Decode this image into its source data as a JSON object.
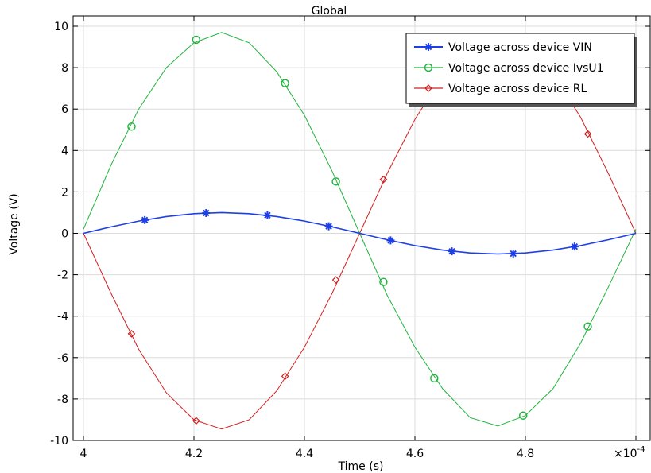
{
  "chart_data": {
    "type": "line",
    "title": "Global",
    "xlabel": "Time (s)",
    "ylabel": "Voltage (V)",
    "x_multiplier": "×10",
    "x_multiplier_exp": "-4",
    "xlim": [
      4.0,
      5.0
    ],
    "ylim": [
      -10,
      10
    ],
    "xticks": [
      4.0,
      4.2,
      4.4,
      4.6,
      4.8,
      5.0
    ],
    "xtick_labels": [
      "4",
      "4.2",
      "4.4",
      "4.6",
      "4.8",
      ""
    ],
    "yticks": [
      -10,
      -8,
      -6,
      -4,
      -2,
      0,
      2,
      4,
      6,
      8,
      10
    ],
    "ytick_labels": [
      "-10",
      "-8",
      "-6",
      "-4",
      "-2",
      "0",
      "2",
      "4",
      "6",
      "8",
      "10"
    ],
    "grid": true,
    "legend_position": "top-right",
    "series": [
      {
        "name": "Voltage across device VIN",
        "color": "#1f3fe6",
        "marker": "asterisk",
        "x": [
          4.0,
          4.05,
          4.1,
          4.15,
          4.2,
          4.25,
          4.3,
          4.35,
          4.4,
          4.45,
          4.5,
          4.55,
          4.6,
          4.65,
          4.7,
          4.75,
          4.8,
          4.85,
          4.9,
          4.95,
          5.0
        ],
        "values": [
          0.0,
          0.31,
          0.59,
          0.81,
          0.95,
          1.0,
          0.95,
          0.81,
          0.59,
          0.31,
          0.0,
          -0.31,
          -0.59,
          -0.81,
          -0.95,
          -1.0,
          -0.95,
          -0.81,
          -0.59,
          -0.31,
          0.0
        ],
        "markers_x": [
          4.111,
          4.222,
          4.333,
          4.444,
          4.556,
          4.667,
          4.778,
          4.889
        ],
        "markers_y": [
          0.64,
          0.98,
          0.87,
          0.34,
          -0.34,
          -0.87,
          -0.98,
          -0.64
        ]
      },
      {
        "name": "Voltage across device IvsU1",
        "color": "#1fb43c",
        "marker": "circle",
        "x": [
          4.0,
          4.05,
          4.1,
          4.15,
          4.2,
          4.25,
          4.3,
          4.35,
          4.4,
          4.45,
          4.5,
          4.55,
          4.6,
          4.65,
          4.7,
          4.75,
          4.8,
          4.85,
          4.9,
          4.95,
          5.0
        ],
        "values": [
          0.2,
          3.3,
          6.0,
          8.0,
          9.2,
          9.7,
          9.2,
          7.8,
          5.7,
          3.0,
          0.0,
          -3.0,
          -5.5,
          -7.5,
          -8.9,
          -9.3,
          -8.8,
          -7.5,
          -5.3,
          -2.6,
          0.2
        ],
        "markers_x": [
          4.087,
          4.204,
          4.365,
          4.457,
          4.543,
          4.635,
          4.796,
          4.913
        ],
        "markers_y": [
          5.15,
          9.35,
          7.25,
          2.5,
          -2.35,
          -7.0,
          -8.8,
          -4.5
        ]
      },
      {
        "name": "Voltage across device RL",
        "color": "#d21e1e",
        "marker": "diamond",
        "x": [
          4.0,
          4.05,
          4.1,
          4.15,
          4.2,
          4.25,
          4.3,
          4.35,
          4.4,
          4.45,
          4.5,
          4.55,
          4.6,
          4.65,
          4.7,
          4.75,
          4.8,
          4.85,
          4.9,
          4.95,
          5.0
        ],
        "values": [
          0.0,
          -2.9,
          -5.6,
          -7.7,
          -9.0,
          -9.45,
          -9.0,
          -7.6,
          -5.5,
          -2.9,
          0.0,
          2.9,
          5.5,
          7.6,
          9.0,
          9.45,
          9.0,
          7.7,
          5.6,
          2.9,
          0.0
        ],
        "markers_x": [
          4.087,
          4.204,
          4.365,
          4.457,
          4.543,
          4.635,
          4.796,
          4.913
        ],
        "markers_y": [
          -4.85,
          -9.05,
          -6.9,
          -2.25,
          2.6,
          7.0,
          8.9,
          4.8
        ]
      }
    ]
  }
}
